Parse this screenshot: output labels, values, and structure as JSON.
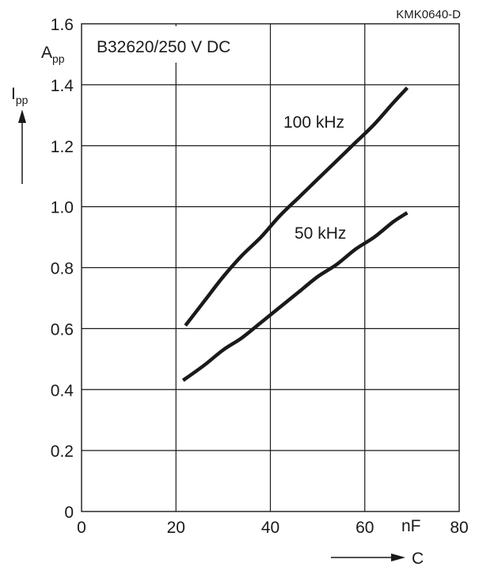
{
  "figure_code": "KMK0640-D",
  "chart_data": {
    "type": "line",
    "title": "B32620/250 V DC",
    "xlabel": "C",
    "x_unit": "nF",
    "ylabel_main": "I",
    "ylabel_sub": "pp",
    "y_unit_main": "A",
    "y_unit_sub": "pp",
    "xlim": [
      0,
      80
    ],
    "ylim": [
      0,
      1.6
    ],
    "x_ticks": [
      "0",
      "20",
      "40",
      "60",
      "80"
    ],
    "y_ticks": [
      "0",
      "0.2",
      "0.4",
      "0.6",
      "0.8",
      "1.0",
      "1.2",
      "1.4",
      "1.6"
    ],
    "grid": true,
    "series": [
      {
        "name": "100 kHz",
        "x": [
          22,
          26,
          30,
          34,
          38,
          42,
          46,
          50,
          54,
          58,
          62,
          66,
          69
        ],
        "y": [
          0.61,
          0.69,
          0.77,
          0.84,
          0.9,
          0.97,
          1.03,
          1.09,
          1.15,
          1.21,
          1.27,
          1.34,
          1.39
        ]
      },
      {
        "name": "50 kHz",
        "x": [
          21.5,
          26,
          30,
          34,
          38,
          42,
          46,
          50,
          54,
          58,
          62,
          66,
          69
        ],
        "y": [
          0.43,
          0.48,
          0.53,
          0.57,
          0.62,
          0.67,
          0.72,
          0.77,
          0.81,
          0.86,
          0.9,
          0.95,
          0.98
        ]
      }
    ]
  }
}
